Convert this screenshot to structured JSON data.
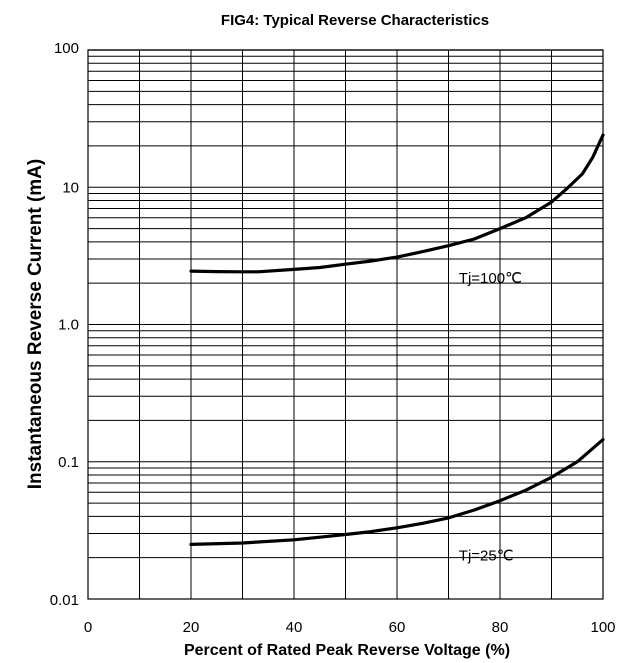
{
  "chart_data": {
    "type": "line",
    "title": "FIG4:  Typical Reverse Characteristics",
    "xlabel": "Percent of Rated Peak Reverse Voltage (%)",
    "ylabel": "Instantaneous Reverse Current (mA)",
    "xlim": [
      0,
      100
    ],
    "ylim": [
      0.01,
      100
    ],
    "yscale": "log",
    "grid": true,
    "x_ticks": [
      0,
      20,
      40,
      60,
      80,
      100
    ],
    "x_tick_labels": [
      "0",
      "20",
      "40",
      "60",
      "80",
      "100"
    ],
    "y_ticks": [
      0.01,
      0.1,
      1,
      10,
      100
    ],
    "y_tick_labels": [
      "0.01",
      "0.1",
      "1.0",
      "10",
      "100"
    ],
    "series": [
      {
        "name": "Tj=100℃",
        "x": [
          20,
          25,
          30,
          33,
          40,
          45,
          50,
          55,
          60,
          65,
          70,
          75,
          80,
          85,
          90,
          93,
          96,
          98,
          100
        ],
        "y": [
          2.45,
          2.43,
          2.42,
          2.42,
          2.52,
          2.6,
          2.75,
          2.9,
          3.1,
          3.4,
          3.75,
          4.2,
          5.0,
          6.0,
          7.8,
          9.8,
          12.5,
          16.5,
          24
        ]
      },
      {
        "name": "Tj=25℃",
        "x": [
          20,
          30,
          40,
          45,
          50,
          55,
          60,
          65,
          70,
          75,
          80,
          85,
          90,
          95,
          100
        ],
        "y": [
          0.025,
          0.0256,
          0.027,
          0.0282,
          0.0295,
          0.031,
          0.033,
          0.0356,
          0.039,
          0.0445,
          0.052,
          0.062,
          0.077,
          0.1,
          0.145
        ]
      }
    ],
    "annotations": [
      {
        "text": "Tj=100℃",
        "x": 72,
        "y": 2.0
      },
      {
        "text": "Tj=25℃",
        "x": 72,
        "y": 0.019
      }
    ]
  }
}
